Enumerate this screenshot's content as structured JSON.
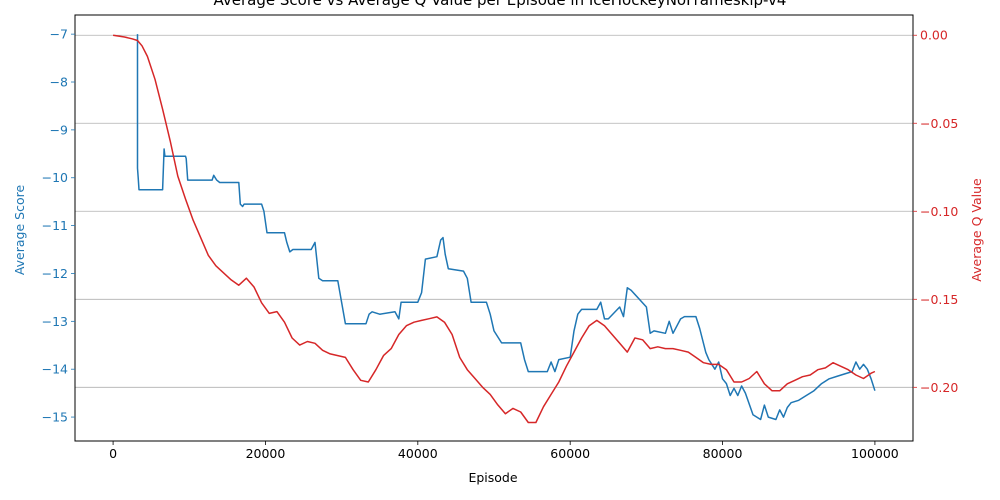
{
  "chart_data": {
    "type": "line",
    "title": "Average Score vs Average Q Value per Episode in IceHockeyNoFrameskip-v4",
    "xlabel": "Episode",
    "ylabel_left": "Average Score",
    "ylabel_right": "Average Q Value",
    "xlim": [
      -5000,
      105000
    ],
    "ylim_left": [
      -15.5,
      -6.6
    ],
    "ylim_right": [
      -0.2305,
      0.0115
    ],
    "x_ticks": [
      0,
      20000,
      40000,
      60000,
      80000,
      100000
    ],
    "x_tick_labels": [
      "0",
      "20000",
      "40000",
      "60000",
      "80000",
      "100000"
    ],
    "y_left_ticks": [
      -7,
      -8,
      -9,
      -10,
      -11,
      -12,
      -13,
      -14,
      -15
    ],
    "y_left_tick_labels": [
      "−7",
      "−8",
      "−9",
      "−10",
      "−11",
      "−12",
      "−13",
      "−14",
      "−15"
    ],
    "y_right_ticks": [
      0.0,
      -0.05,
      -0.1,
      -0.15,
      -0.2
    ],
    "y_right_tick_labels": [
      "0.00",
      "−0.05",
      "−0.10",
      "−0.15",
      "−0.20"
    ],
    "grid": "horizontal (right axis)",
    "series": [
      {
        "axis": "left",
        "color": "#1f77b4",
        "x": [
          3200,
          3200,
          3300,
          3400,
          3450,
          3500,
          6500,
          6700,
          6800,
          7000,
          9500,
          9600,
          9800,
          10000,
          13000,
          13200,
          13600,
          14000,
          16500,
          16700,
          17000,
          17200,
          19500,
          19800,
          20200,
          20500,
          22500,
          22800,
          23200,
          23600,
          26000,
          26500,
          27000,
          27500,
          29500,
          30000,
          30500,
          31000,
          33200,
          33600,
          34000,
          35000,
          37000,
          37500,
          37800,
          38000,
          40000,
          40500,
          41000,
          42500,
          43000,
          43300,
          43600,
          44000,
          46000,
          46500,
          47000,
          49000,
          49500,
          50000,
          51000,
          53500,
          54000,
          54500,
          55000,
          57000,
          57500,
          58000,
          58500,
          60000,
          60500,
          61000,
          61500,
          63500,
          64000,
          64500,
          65000,
          66500,
          67000,
          67500,
          68000,
          70000,
          70500,
          71000,
          72500,
          73000,
          73500,
          74500,
          75000,
          76500,
          77000,
          77800,
          78200,
          79000,
          79500,
          80000,
          80500,
          81000,
          81500,
          82000,
          82500,
          83000,
          84000,
          85000,
          85500,
          86000,
          87000,
          87500,
          88000,
          88500,
          89000,
          90000,
          91000,
          92000,
          93000,
          94000,
          95000,
          96000,
          97000,
          97500,
          98000,
          98500,
          99000,
          99500,
          100000
        ],
        "y": [
          -7.0,
          -9.8,
          -10.0,
          -10.25,
          -10.25,
          -10.25,
          -10.25,
          -9.4,
          -9.55,
          -9.55,
          -9.55,
          -9.6,
          -10.05,
          -10.05,
          -10.05,
          -9.95,
          -10.05,
          -10.1,
          -10.1,
          -10.55,
          -10.6,
          -10.55,
          -10.55,
          -10.7,
          -11.15,
          -11.15,
          -11.15,
          -11.35,
          -11.55,
          -11.5,
          -11.5,
          -11.35,
          -12.1,
          -12.15,
          -12.15,
          -12.6,
          -13.05,
          -13.05,
          -13.05,
          -12.85,
          -12.8,
          -12.85,
          -12.8,
          -12.95,
          -12.6,
          -12.6,
          -12.6,
          -12.4,
          -11.7,
          -11.65,
          -11.3,
          -11.25,
          -11.6,
          -11.9,
          -11.95,
          -12.1,
          -12.6,
          -12.6,
          -12.85,
          -13.2,
          -13.45,
          -13.45,
          -13.8,
          -14.05,
          -14.05,
          -14.05,
          -13.85,
          -14.05,
          -13.8,
          -13.75,
          -13.2,
          -12.85,
          -12.75,
          -12.75,
          -12.6,
          -12.95,
          -12.95,
          -12.7,
          -12.9,
          -12.3,
          -12.35,
          -12.7,
          -13.25,
          -13.2,
          -13.25,
          -13.0,
          -13.25,
          -12.95,
          -12.9,
          -12.9,
          -13.15,
          -13.65,
          -13.8,
          -14.0,
          -13.85,
          -14.2,
          -14.3,
          -14.55,
          -14.4,
          -14.55,
          -14.35,
          -14.5,
          -14.95,
          -15.05,
          -14.75,
          -15.0,
          -15.05,
          -14.85,
          -15.0,
          -14.8,
          -14.7,
          -14.65,
          -14.55,
          -14.45,
          -14.3,
          -14.2,
          -14.15,
          -14.1,
          -14.05,
          -13.85,
          -14.0,
          -13.9,
          -14.0,
          -14.2,
          -14.45
        ]
      },
      {
        "axis": "right",
        "color": "#d62728",
        "x": [
          0,
          1500,
          2500,
          3200,
          3800,
          4500,
          5500,
          6500,
          7500,
          8500,
          9500,
          10500,
          11500,
          12500,
          13500,
          14500,
          15500,
          16500,
          17500,
          18500,
          19500,
          20500,
          21500,
          22500,
          23500,
          24500,
          25500,
          26500,
          27500,
          28500,
          29500,
          30500,
          31500,
          32500,
          33500,
          34500,
          35500,
          36500,
          37500,
          38500,
          39500,
          40500,
          41500,
          42500,
          43500,
          44500,
          45500,
          46500,
          47500,
          48500,
          49500,
          50500,
          51500,
          52500,
          53500,
          54500,
          55500,
          56500,
          57500,
          58500,
          59500,
          60500,
          61500,
          62500,
          63500,
          64500,
          65500,
          66500,
          67500,
          68500,
          69500,
          70500,
          71500,
          72500,
          73500,
          74500,
          75500,
          76500,
          77500,
          78500,
          79500,
          80500,
          81500,
          82500,
          83500,
          84500,
          85500,
          86500,
          87500,
          88500,
          89500,
          90500,
          91500,
          92500,
          93500,
          94500,
          95500,
          96500,
          97500,
          98500,
          99500,
          100000
        ],
        "y": [
          0.0,
          -0.001,
          -0.002,
          -0.003,
          -0.006,
          -0.012,
          -0.025,
          -0.042,
          -0.06,
          -0.08,
          -0.093,
          -0.105,
          -0.115,
          -0.125,
          -0.131,
          -0.135,
          -0.139,
          -0.142,
          -0.138,
          -0.143,
          -0.152,
          -0.158,
          -0.157,
          -0.163,
          -0.172,
          -0.176,
          -0.174,
          -0.175,
          -0.179,
          -0.181,
          -0.182,
          -0.183,
          -0.19,
          -0.196,
          -0.197,
          -0.19,
          -0.182,
          -0.178,
          -0.17,
          -0.165,
          -0.163,
          -0.162,
          -0.161,
          -0.16,
          -0.163,
          -0.17,
          -0.183,
          -0.19,
          -0.195,
          -0.2,
          -0.204,
          -0.21,
          -0.215,
          -0.212,
          -0.214,
          -0.22,
          -0.22,
          -0.211,
          -0.204,
          -0.197,
          -0.188,
          -0.18,
          -0.172,
          -0.165,
          -0.162,
          -0.165,
          -0.17,
          -0.175,
          -0.18,
          -0.172,
          -0.173,
          -0.178,
          -0.177,
          -0.178,
          -0.178,
          -0.179,
          -0.18,
          -0.183,
          -0.186,
          -0.187,
          -0.187,
          -0.19,
          -0.197,
          -0.197,
          -0.195,
          -0.191,
          -0.198,
          -0.202,
          -0.202,
          -0.198,
          -0.196,
          -0.194,
          -0.193,
          -0.19,
          -0.189,
          -0.186,
          -0.188,
          -0.19,
          -0.193,
          -0.195,
          -0.192,
          -0.191
        ]
      }
    ]
  }
}
